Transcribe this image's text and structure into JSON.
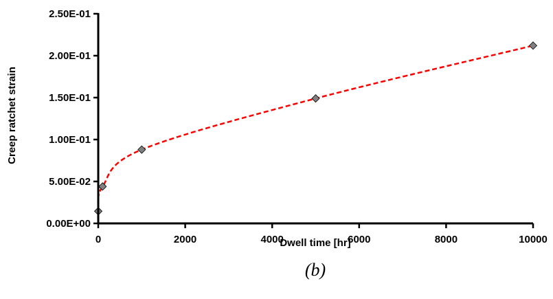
{
  "chart_data": {
    "type": "scatter",
    "xlabel": "Dwell time [hr]",
    "ylabel": "Creep ratchet strain",
    "xlim": [
      0,
      10000
    ],
    "ylim": [
      0,
      0.25
    ],
    "x_ticks": [
      0,
      2000,
      4000,
      6000,
      8000,
      10000
    ],
    "x_tick_labels": [
      "0",
      "2000",
      "4000",
      "6000",
      "8000",
      "10000"
    ],
    "y_ticks": [
      0,
      0.05,
      0.1,
      0.15,
      0.2,
      0.25
    ],
    "y_tick_labels": [
      "0.00E+00",
      "5.00E-02",
      "1.00E-01",
      "1.50E-01",
      "2.00E-01",
      "2.50E-01"
    ],
    "grid": false,
    "series": [
      {
        "marker": "diamond",
        "color": "#808080",
        "x": [
          1,
          100,
          1000,
          5000,
          10000
        ],
        "y": [
          0.0145,
          0.044,
          0.088,
          0.149,
          0.212
        ]
      }
    ],
    "trendline": {
      "style": "dashed",
      "color": "#ff0000"
    },
    "caption": "(b)"
  }
}
